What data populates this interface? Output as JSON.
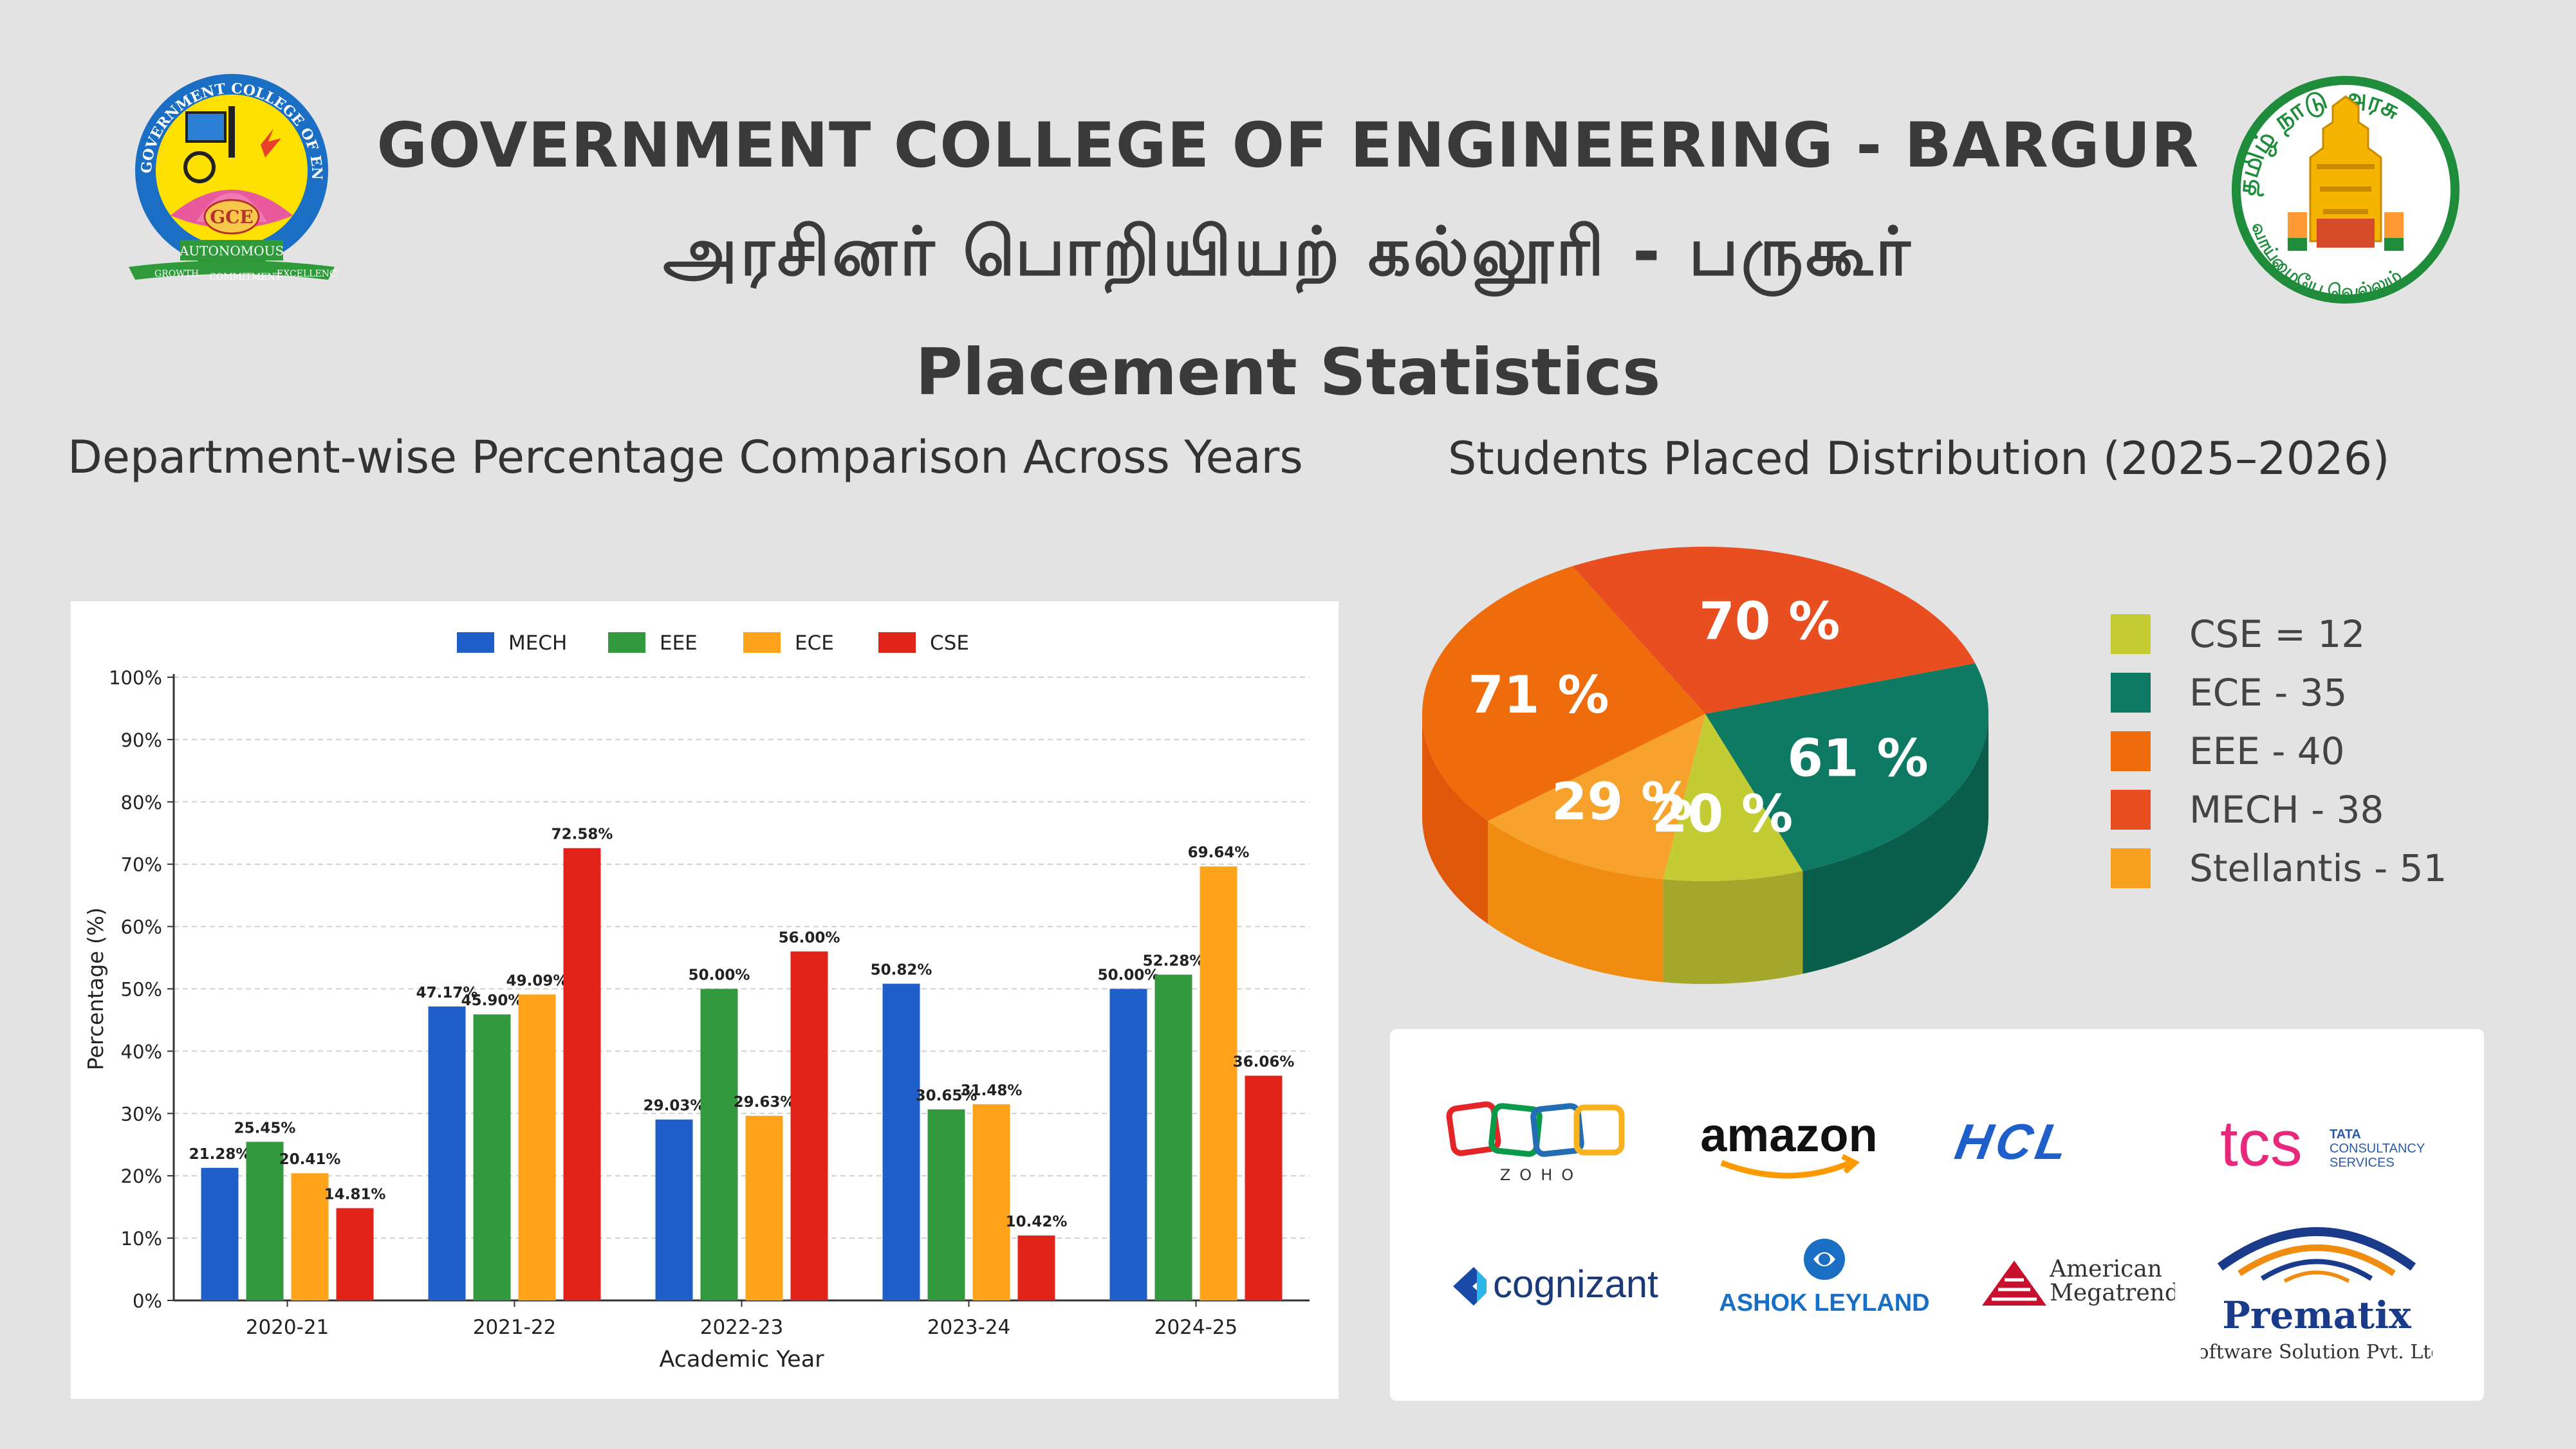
{
  "header": {
    "title_en": "GOVERNMENT COLLEGE OF ENGINEERING - BARGUR",
    "title_ta": "அரசினர் பொறியியற் கல்லூரி - பருகூர்",
    "subtitle": "Placement Statistics"
  },
  "college_logo": {
    "icon": "college-emblem-icon",
    "ring_text": "GOVERNMENT COLLEGE OF ENGINEERING • BARGUR",
    "center_text": "GCE",
    "banner_text": "AUTONOMOUS",
    "ribbon_words": [
      "GROWTH",
      "COMMITMENT",
      "EXCELLENCE"
    ],
    "colors": {
      "blue": "#1a6fc4",
      "yellow": "#ffe100",
      "pink": "#e85a9b",
      "green": "#2e9a3a"
    }
  },
  "state_emblem": {
    "icon": "tamil-nadu-emblem-icon",
    "top_text": "தமிழ் நாடு அரசு",
    "bottom_text": "வாய்மையே வெல்லும்"
  },
  "bar_chart_title": "Department-wise Percentage Comparison Across Years",
  "pie_chart_title": "Students Placed Distribution (2025–2026)",
  "chart_data": [
    {
      "type": "bar",
      "categories": [
        "2020-21",
        "2021-22",
        "2022-23",
        "2023-24",
        "2024-25"
      ],
      "series": [
        {
          "name": "MECH",
          "color": "#1f5fc9",
          "values": [
            21.28,
            47.17,
            29.03,
            50.82,
            50.0
          ],
          "labels": [
            "21.28%",
            "47.17%",
            "29.03%",
            "50.82%",
            "50.00%"
          ]
        },
        {
          "name": "EEE",
          "color": "#33993f",
          "values": [
            25.45,
            45.9,
            50.0,
            30.65,
            52.28
          ],
          "labels": [
            "25.45%",
            "45.90%",
            "50.00%",
            "30.65%",
            "52.28%"
          ]
        },
        {
          "name": "ECE",
          "color": "#ffa31a",
          "values": [
            20.41,
            49.09,
            29.63,
            31.48,
            69.64
          ],
          "labels": [
            "20.41%",
            "49.09%",
            "29.63%",
            "31.48%",
            "69.64%"
          ]
        },
        {
          "name": "CSE",
          "color": "#e2231a",
          "values": [
            14.81,
            72.58,
            56.0,
            10.42,
            36.06
          ],
          "labels": [
            "14.81%",
            "72.58%",
            "56.00%",
            "10.42%",
            "36.06%"
          ]
        }
      ],
      "xlabel": "Academic Year",
      "ylabel": "Percentage (%)",
      "ylim": [
        0,
        100
      ],
      "yticks": [
        "0%",
        "10%",
        "20%",
        "30%",
        "40%",
        "50%",
        "60%",
        "70%",
        "80%",
        "90%",
        "100%"
      ],
      "grid": true,
      "legend": "top-center"
    },
    {
      "type": "pie",
      "style": "3d",
      "slices": [
        {
          "label": "70 %",
          "value": 70,
          "color": "#e84e1f",
          "side": "#c4401a"
        },
        {
          "label": "61 %",
          "value": 61,
          "color": "#0e7a63",
          "side": "#0a5e4c"
        },
        {
          "label": "20 %",
          "value": 20,
          "color": "#c3cc33",
          "side": "#a3a82a"
        },
        {
          "label": "29 %",
          "value": 29,
          "color": "#f7a22c",
          "side": "#f08c10"
        },
        {
          "label": "71 %",
          "value": 71,
          "color": "#ef6c0c",
          "side": "#e0580a"
        }
      ],
      "legend": [
        {
          "text": "CSE = 12",
          "color": "#c3cc33"
        },
        {
          "text": "ECE - 35",
          "color": "#0e7a63"
        },
        {
          "text": "EEE - 40",
          "color": "#ef6c0c"
        },
        {
          "text": "MECH - 38",
          "color": "#e84e1f"
        },
        {
          "text": "Stellantis - 51",
          "color": "#f9a01e"
        }
      ],
      "legend_position": "right"
    }
  ],
  "recruiters": {
    "zoho": {
      "icon": "zoho-logo-icon",
      "text": "ZOHO",
      "colors": [
        "#e42527",
        "#089949",
        "#226db4",
        "#f9b21d"
      ]
    },
    "amazon": {
      "icon": "amazon-logo-icon",
      "text": "amazon"
    },
    "hcl": {
      "icon": "hcl-logo-icon",
      "text": "HCL"
    },
    "tcs": {
      "icon": "tcs-logo-icon",
      "text": "tcs",
      "sub": [
        "TATA",
        "CONSULTANCY",
        "SERVICES"
      ]
    },
    "cognizant": {
      "icon": "cognizant-logo-icon",
      "text": "cognizant"
    },
    "ashok_leyland": {
      "icon": "ashok-leyland-logo-icon",
      "text": "ASHOK LEYLAND"
    },
    "american_megatrends": {
      "icon": "american-megatrends-logo-icon",
      "text": [
        "American",
        "Megatrends"
      ]
    },
    "prematix": {
      "icon": "prematix-logo-icon",
      "text": "Prematix",
      "sub": "Software Solution Pvt. Ltd."
    }
  }
}
